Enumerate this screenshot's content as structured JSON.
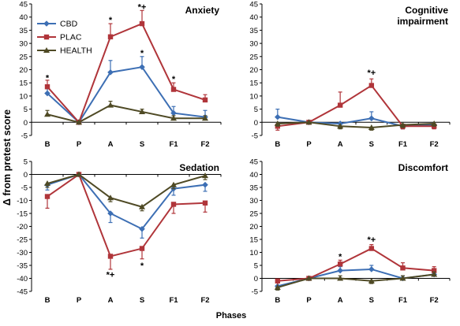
{
  "figure": {
    "ylabel": "Δ from pretest score",
    "xlabel": "Phases"
  },
  "legend": [
    {
      "name": "CBD",
      "color": "#3d6fb4",
      "marker": "diamond"
    },
    {
      "name": "PLAC",
      "color": "#b0353a",
      "marker": "square"
    },
    {
      "name": "HEALTH",
      "color": "#4f4a25",
      "marker": "triangle"
    }
  ],
  "chart_data": [
    {
      "type": "line",
      "title": "Anxiety",
      "categories": [
        "B",
        "P",
        "A",
        "S",
        "F1",
        "F2"
      ],
      "ylim": [
        -5,
        45
      ],
      "yticks": [
        -5,
        0,
        5,
        10,
        15,
        20,
        25,
        30,
        35,
        40,
        45
      ],
      "series": [
        {
          "name": "CBD",
          "color": "#3d6fb4",
          "marker": "diamond",
          "values": [
            11,
            0,
            19,
            21,
            3.5,
            2
          ],
          "errors": [
            2.5,
            0,
            4.5,
            4,
            2.5,
            2.5
          ]
        },
        {
          "name": "PLAC",
          "color": "#b0353a",
          "marker": "square",
          "values": [
            13.5,
            0,
            32.5,
            37.5,
            12.5,
            8.5
          ],
          "errors": [
            2.5,
            0,
            5,
            5,
            2.5,
            2
          ]
        },
        {
          "name": "HEALTH",
          "color": "#4f4a25",
          "marker": "triangle",
          "values": [
            3,
            0,
            6.5,
            4,
            1.5,
            1.5
          ],
          "errors": [
            1.5,
            0,
            1.5,
            1,
            1,
            1
          ]
        }
      ],
      "annotations": [
        {
          "text": "*",
          "x": "B",
          "y": 17
        },
        {
          "text": "*",
          "x": "A",
          "y": 39
        },
        {
          "text": "*+",
          "x": "S",
          "y": 44
        },
        {
          "text": "*",
          "x": "S",
          "y": 26.5
        },
        {
          "text": "*",
          "x": "F1",
          "y": 16.5
        }
      ]
    },
    {
      "type": "line",
      "title": "Cognitive\nimpairment",
      "categories": [
        "B",
        "P",
        "A",
        "S",
        "F1",
        "F2"
      ],
      "ylim": [
        -5,
        45
      ],
      "yticks": [
        -5,
        0,
        5,
        10,
        15,
        20,
        25,
        30,
        35,
        40,
        45
      ],
      "series": [
        {
          "name": "CBD",
          "color": "#3d6fb4",
          "marker": "diamond",
          "values": [
            2,
            0,
            -0.5,
            1.5,
            -1.5,
            -1
          ],
          "errors": [
            3,
            0,
            1.5,
            2.5,
            1,
            1
          ]
        },
        {
          "name": "PLAC",
          "color": "#b0353a",
          "marker": "square",
          "values": [
            -1.5,
            0,
            6.5,
            14,
            -1.5,
            -1.5
          ],
          "errors": [
            1.5,
            0,
            5,
            2.5,
            1,
            1
          ]
        },
        {
          "name": "HEALTH",
          "color": "#4f4a25",
          "marker": "triangle",
          "values": [
            -0.5,
            0,
            -1.5,
            -2,
            -1,
            -0.5
          ],
          "errors": [
            1,
            0,
            1,
            1,
            1,
            1
          ]
        }
      ],
      "annotations": [
        {
          "text": "*+",
          "x": "S",
          "y": 19
        }
      ]
    },
    {
      "type": "line",
      "title": "Sedation",
      "categories": [
        "B",
        "P",
        "A",
        "S",
        "F1",
        "F2"
      ],
      "ylim": [
        -45,
        5
      ],
      "yticks": [
        -45,
        -40,
        -35,
        -30,
        -25,
        -20,
        -15,
        -10,
        -5,
        0,
        5
      ],
      "series": [
        {
          "name": "CBD",
          "color": "#3d6fb4",
          "marker": "diamond",
          "values": [
            -4,
            0,
            -15,
            -21,
            -5.5,
            -4
          ],
          "errors": [
            2,
            0,
            3.5,
            3.5,
            2.5,
            2.5
          ]
        },
        {
          "name": "PLAC",
          "color": "#b0353a",
          "marker": "square",
          "values": [
            -8.5,
            0,
            -31.5,
            -28.5,
            -11.5,
            -11
          ],
          "errors": [
            4.5,
            0,
            5,
            4,
            3.5,
            3.5
          ]
        },
        {
          "name": "HEALTH",
          "color": "#4f4a25",
          "marker": "triangle",
          "values": [
            -3.5,
            0,
            -9,
            -12.5,
            -4,
            -0.5
          ],
          "errors": [
            1.5,
            0,
            1.5,
            1.5,
            1.5,
            1.5
          ]
        }
      ],
      "annotations": [
        {
          "text": "*+",
          "x": "A",
          "y": -38.5
        },
        {
          "text": "*",
          "x": "S",
          "y": -35
        }
      ]
    },
    {
      "type": "line",
      "title": "Discomfort",
      "categories": [
        "B",
        "P",
        "A",
        "S",
        "F1",
        "F2"
      ],
      "ylim": [
        -5,
        45
      ],
      "yticks": [
        -5,
        0,
        5,
        10,
        15,
        20,
        25,
        30,
        35,
        40,
        45
      ],
      "series": [
        {
          "name": "CBD",
          "color": "#3d6fb4",
          "marker": "diamond",
          "values": [
            -3,
            0,
            3,
            3.5,
            0,
            1.5
          ],
          "errors": [
            1.5,
            0,
            1.5,
            1.5,
            1,
            1
          ]
        },
        {
          "name": "PLAC",
          "color": "#b0353a",
          "marker": "square",
          "values": [
            -1,
            0,
            5.5,
            11.5,
            4,
            3
          ],
          "errors": [
            2.5,
            0,
            1.5,
            1.5,
            2,
            1.5
          ]
        },
        {
          "name": "HEALTH",
          "color": "#4f4a25",
          "marker": "triangle",
          "values": [
            -3.5,
            0,
            0,
            -1,
            0,
            1.5
          ],
          "errors": [
            1,
            0,
            1,
            1,
            1,
            1
          ]
        }
      ],
      "annotations": [
        {
          "text": "*",
          "x": "A",
          "y": 8.5
        },
        {
          "text": "*+",
          "x": "S",
          "y": 15
        }
      ]
    }
  ]
}
